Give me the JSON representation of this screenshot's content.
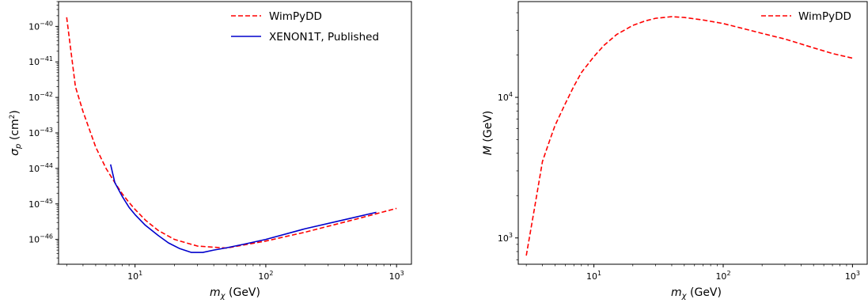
{
  "chart_data": [
    {
      "type": "line",
      "title": "",
      "xlabel": "m_χ (GeV)",
      "ylabel": "σ_p (cm²)",
      "xscale": "log",
      "yscale": "log",
      "xlim": [
        2.6,
        1300
      ],
      "ylim": [
        2e-47,
        5e-40
      ],
      "x_ticks": [
        10,
        100,
        1000
      ],
      "y_ticks": [
        1e-46,
        1e-45,
        1e-44,
        1e-43,
        1e-42,
        1e-41,
        1e-40
      ],
      "legend": "top-right",
      "grid": false,
      "series": [
        {
          "name": "WimPyDD",
          "color": "#ff0000",
          "style": "dashed",
          "x": [
            3.0,
            3.5,
            4.0,
            5.0,
            6.0,
            7.0,
            8.0,
            9.0,
            10.0,
            12.0,
            15.0,
            20.0,
            30.0,
            50.0,
            100.0,
            200.0,
            500.0,
            1000.0
          ],
          "y": [
            1.8e-40,
            2e-42,
            4e-43,
            4e-44,
            1e-44,
            4e-45,
            1.9e-45,
            1.1e-45,
            7e-46,
            3.5e-46,
            1.8e-46,
            1e-46,
            6.5e-47,
            5.7e-47,
            9e-47,
            1.6e-46,
            3.8e-46,
            7.5e-46
          ]
        },
        {
          "name": "XENON1T, Published",
          "color": "#0000cc",
          "style": "solid",
          "x": [
            6.5,
            7.0,
            8.0,
            9.0,
            10.0,
            12.0,
            15.0,
            18.0,
            22.0,
            27.0,
            33.0,
            40.0,
            50.0,
            70.0,
            100.0,
            200.0,
            400.0,
            700.0
          ],
          "y": [
            1.3e-44,
            4e-45,
            1.6e-45,
            8e-46,
            5e-46,
            2.5e-46,
            1.3e-46,
            8e-47,
            5.5e-47,
            4.3e-47,
            4.3e-47,
            5e-47,
            5.8e-47,
            7.5e-47,
            1e-46,
            2e-46,
            3.6e-46,
            5.8e-46
          ]
        }
      ]
    },
    {
      "type": "line",
      "title": "",
      "xlabel": "m_χ (GeV)",
      "ylabel": "M (GeV)",
      "xscale": "log",
      "yscale": "log",
      "xlim": [
        2.6,
        1300
      ],
      "ylim": [
        650,
        48000
      ],
      "x_ticks": [
        10,
        100,
        1000
      ],
      "y_ticks": [
        1000,
        10000
      ],
      "legend": "top-right",
      "grid": false,
      "series": [
        {
          "name": "WimPyDD",
          "color": "#ff0000",
          "style": "dashed",
          "x": [
            3.0,
            3.5,
            4.0,
            4.5,
            5.0,
            6.0,
            7.0,
            8.0,
            10.0,
            12.0,
            15.0,
            20.0,
            25.0,
            30.0,
            40.0,
            50.0,
            70.0,
            100.0,
            150.0,
            200.0,
            300.0,
            500.0,
            700.0,
            1000.0
          ],
          "y": [
            750,
            1700,
            3500,
            4800,
            6300,
            9000,
            12000,
            15000,
            19500,
            23500,
            28000,
            32500,
            35000,
            36500,
            37500,
            37000,
            35500,
            33500,
            30500,
            28500,
            26000,
            22500,
            20500,
            19000
          ]
        }
      ]
    }
  ]
}
